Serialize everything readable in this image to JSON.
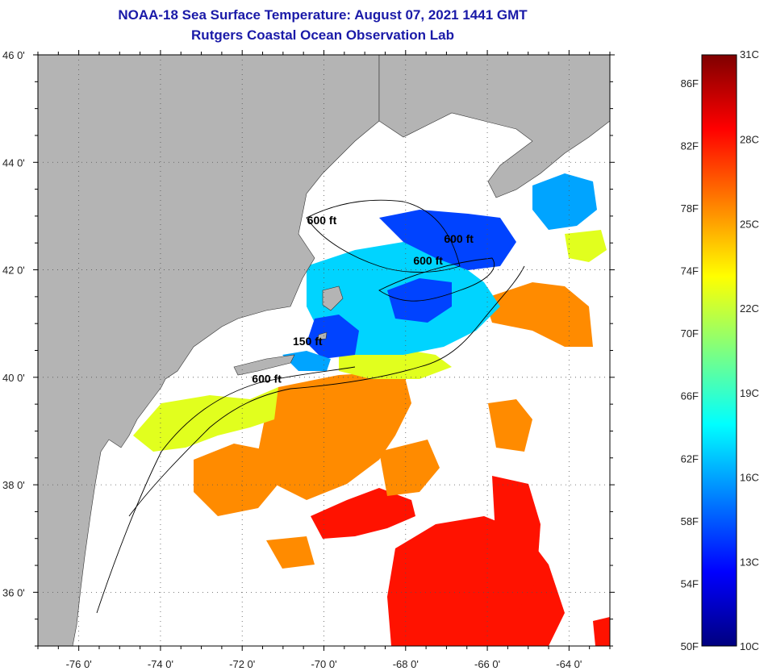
{
  "header": {
    "title": "NOAA-18 Sea Surface Temperature:  August 07, 2021 1441 GMT",
    "subtitle": "Rutgers Coastal Ocean Observation Lab"
  },
  "map": {
    "lon_range": [
      -77,
      -63
    ],
    "lat_range": [
      35,
      46
    ],
    "lat_labels": [
      {
        "lat": 46,
        "text": "46 0'"
      },
      {
        "lat": 44,
        "text": "44 0'"
      },
      {
        "lat": 42,
        "text": "42 0'"
      },
      {
        "lat": 40,
        "text": "40 0'"
      },
      {
        "lat": 38,
        "text": "38 0'"
      },
      {
        "lat": 36,
        "text": "36 0'"
      }
    ],
    "lon_labels": [
      {
        "lon": -76,
        "text": "-76 0'"
      },
      {
        "lon": -74,
        "text": "-74 0'"
      },
      {
        "lon": -72,
        "text": "-72 0'"
      },
      {
        "lon": -70,
        "text": "-70 0'"
      },
      {
        "lon": -68,
        "text": "-68 0'"
      },
      {
        "lon": -66,
        "text": "-66 0'"
      },
      {
        "lon": -64,
        "text": "-64 0'"
      }
    ],
    "contour_labels": [
      {
        "text": "600 ft",
        "lon": -70.05,
        "lat": 42.85
      },
      {
        "text": "600 ft",
        "lon": -66.7,
        "lat": 42.5
      },
      {
        "text": "600 ft",
        "lon": -67.45,
        "lat": 42.1
      },
      {
        "text": "150 ft",
        "lon": -70.4,
        "lat": 40.6
      },
      {
        "text": "600 ft",
        "lon": -71.4,
        "lat": 39.9
      }
    ],
    "land_color": "#b4b4b4"
  },
  "colorbar": {
    "min_c": 10,
    "max_c": 31,
    "c_labels": [
      "31C",
      "28C",
      "25C",
      "22C",
      "19C",
      "16C",
      "13C",
      "10C"
    ],
    "f_labels": [
      "86F",
      "82F",
      "78F",
      "74F",
      "70F",
      "66F",
      "62F",
      "58F",
      "54F",
      "50F"
    ],
    "colors": [
      "#00007f",
      "#0000ff",
      "#007fff",
      "#00ffff",
      "#7fff7f",
      "#ffff00",
      "#ff7f00",
      "#ff0000",
      "#7f0000"
    ]
  },
  "sst_regions": [
    {
      "name": "gulf-of-maine-cool",
      "temp_c": 14
    },
    {
      "name": "georges-bank",
      "temp_c": 17
    },
    {
      "name": "scotian-shelf",
      "temp_c": 16
    },
    {
      "name": "shelf-yellow",
      "temp_c": 22.5
    },
    {
      "name": "slope-orange",
      "temp_c": 25.5
    },
    {
      "name": "gulf-stream-red",
      "temp_c": 28
    }
  ]
}
